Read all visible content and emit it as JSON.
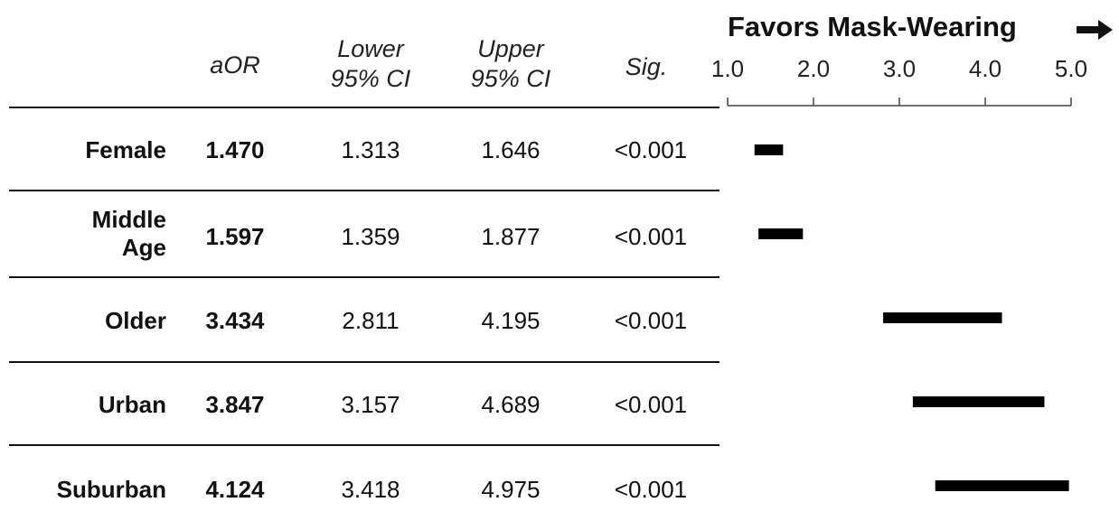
{
  "columns": {
    "aor": "aOR",
    "lower": [
      "Lower",
      "95% CI"
    ],
    "upper": [
      "Upper",
      "95% CI"
    ],
    "sig": "Sig."
  },
  "rows": [
    {
      "label": [
        "Female"
      ],
      "aor": "1.470",
      "lower": "1.313",
      "upper": "1.646",
      "sig": "<0.001"
    },
    {
      "label": [
        "Middle",
        "Age"
      ],
      "aor": "1.597",
      "lower": "1.359",
      "upper": "1.877",
      "sig": "<0.001"
    },
    {
      "label": [
        "Older"
      ],
      "aor": "3.434",
      "lower": "2.811",
      "upper": "4.195",
      "sig": "<0.001"
    },
    {
      "label": [
        "Urban"
      ],
      "aor": "3.847",
      "lower": "3.157",
      "upper": "4.689",
      "sig": "<0.001"
    },
    {
      "label": [
        "Suburban"
      ],
      "aor": "4.124",
      "lower": "3.418",
      "upper": "4.975",
      "sig": "<0.001"
    }
  ],
  "chart_data": {
    "type": "forest",
    "title": "Favors Mask-Wearing",
    "arrow_icon": "right-arrow-icon",
    "xlim": [
      1.0,
      5.0
    ],
    "ticks": [
      "1.0",
      "2.0",
      "3.0",
      "4.0",
      "5.0"
    ],
    "ci": [
      {
        "row": "Female",
        "low": 1.313,
        "high": 1.646
      },
      {
        "row": "Middle Age",
        "low": 1.359,
        "high": 1.877
      },
      {
        "row": "Older",
        "low": 2.811,
        "high": 4.195
      },
      {
        "row": "Urban",
        "low": 3.157,
        "high": 4.689
      },
      {
        "row": "Suburban",
        "low": 3.418,
        "high": 4.975
      }
    ]
  }
}
